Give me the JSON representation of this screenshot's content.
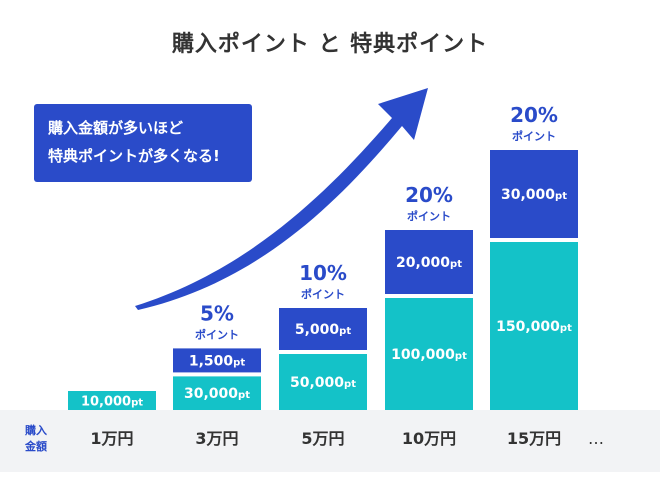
{
  "chart_data": {
    "type": "bar",
    "stacked": true,
    "title": "購入ポイント と 特典ポイント",
    "callout": [
      "購入金額が多いほど",
      "特典ポイントが多くなる!"
    ],
    "axis_label": [
      "購入",
      "金額"
    ],
    "categories": [
      "1万円",
      "3万円",
      "5万円",
      "10万円",
      "15万円"
    ],
    "trailing": "…",
    "unit": "pt",
    "pct_unit": "ポイント",
    "series": [
      {
        "values": [
          10000,
          30000,
          50000,
          100000,
          150000
        ],
        "labels": [
          "10,000",
          "30,000",
          "50,000",
          "100,000",
          "150,000"
        ],
        "color": "#14c2c8"
      },
      {
        "values": [
          0,
          1500,
          5000,
          20000,
          30000
        ],
        "labels": [
          "",
          "1,500",
          "5,000",
          "20,000",
          "30,000"
        ],
        "color": "#2a4bc9"
      }
    ],
    "rates": [
      "",
      "5%",
      "10%",
      "20%",
      "20%"
    ],
    "accent": "#2a4bc9"
  }
}
